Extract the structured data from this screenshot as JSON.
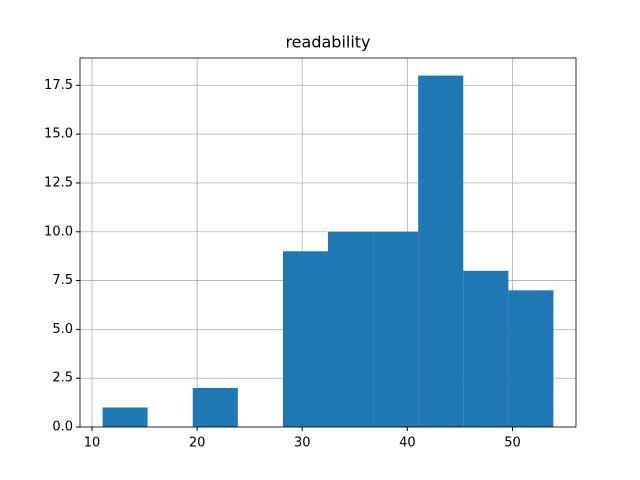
{
  "chart_data": {
    "type": "histogram",
    "title": "readability",
    "bins": [
      11.0,
      15.29,
      19.58,
      23.87,
      28.16,
      32.45,
      36.74,
      41.03,
      45.32,
      49.61,
      53.9
    ],
    "counts": [
      1,
      0,
      2,
      0,
      9,
      10,
      10,
      18,
      8,
      7
    ],
    "color": "#1f77b4",
    "xlim": [
      8.855,
      56.045
    ],
    "xticks": [
      10,
      20,
      30,
      40,
      50
    ],
    "ylim": [
      0,
      18.9
    ],
    "yticks": [
      {
        "value": 0,
        "label": "0.0"
      },
      {
        "value": 2.5,
        "label": "2.5"
      },
      {
        "value": 5,
        "label": "5.0"
      },
      {
        "value": 7.5,
        "label": "7.5"
      },
      {
        "value": 10,
        "label": "10.0"
      },
      {
        "value": 12.5,
        "label": "12.5"
      },
      {
        "value": 15,
        "label": "15.0"
      },
      {
        "value": 17.5,
        "label": "17.5"
      }
    ],
    "grid": true
  }
}
